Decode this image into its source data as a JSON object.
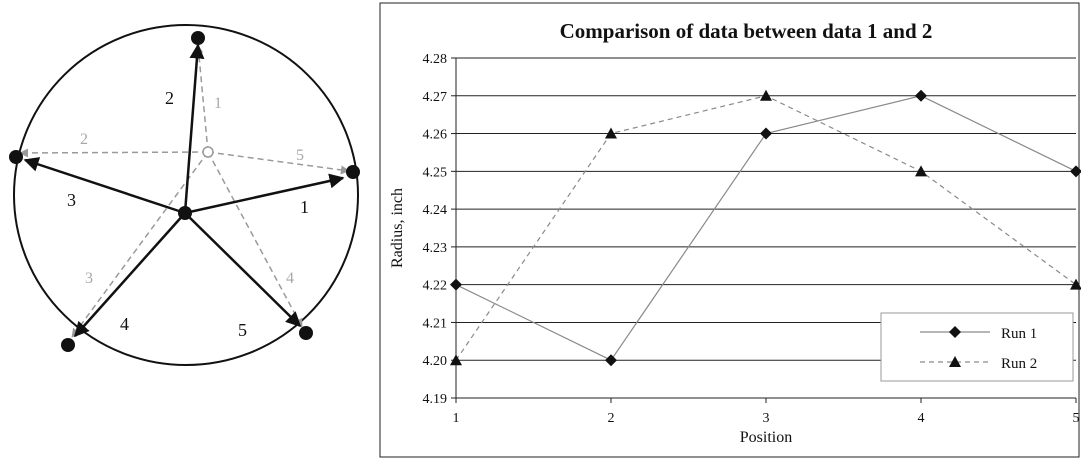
{
  "diagram": {
    "solid_labels": [
      "1",
      "2",
      "3",
      "4",
      "5"
    ],
    "dashed_labels": [
      "1",
      "2",
      "3",
      "4",
      "5"
    ]
  },
  "chart_data": {
    "type": "line",
    "title": "Comparison of data between data 1 and 2",
    "xlabel": "Position",
    "ylabel": "Radius, inch",
    "x": [
      1,
      2,
      3,
      4,
      5
    ],
    "x_tick_labels": [
      "1",
      "2",
      "3",
      "4",
      "5"
    ],
    "y_tick_labels": [
      "4.19",
      "4.20",
      "4.21",
      "4.22",
      "4.23",
      "4.24",
      "4.25",
      "4.26",
      "4.27",
      "4.28"
    ],
    "xlim": [
      1,
      5
    ],
    "ylim": [
      4.19,
      4.28
    ],
    "grid": "horizontal",
    "legend_position": "bottom-right",
    "series": [
      {
        "name": "Run 1",
        "values": [
          4.22,
          4.2,
          4.26,
          4.27,
          4.25
        ],
        "marker": "diamond",
        "line": "solid",
        "color": "#8a8a8a"
      },
      {
        "name": "Run 2",
        "values": [
          4.2,
          4.26,
          4.27,
          4.25,
          4.22
        ],
        "marker": "triangle",
        "line": "dashed",
        "color": "#8a8a8a"
      }
    ]
  }
}
